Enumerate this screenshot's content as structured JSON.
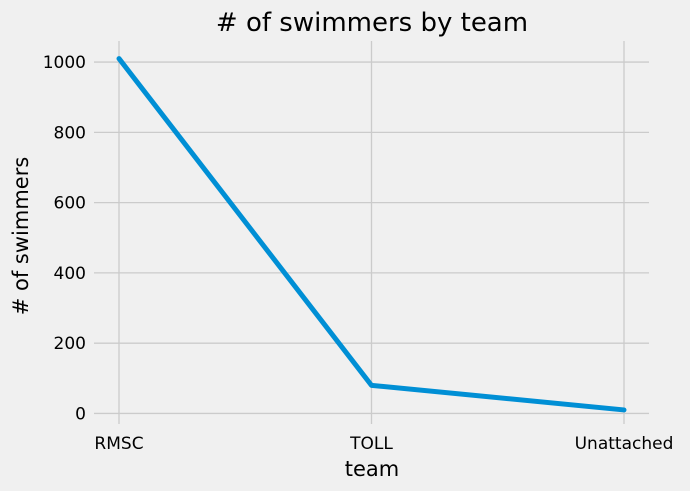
{
  "chart_data": {
    "type": "line",
    "title": "# of swimmers by team",
    "xlabel": "team",
    "ylabel": "# of swimmers",
    "categories": [
      "RMSC",
      "TOLL",
      "Unattached"
    ],
    "series": [
      {
        "values": [
          1010,
          80,
          10
        ],
        "color": "#008fd5"
      }
    ],
    "yticks": [
      0,
      200,
      400,
      600,
      800,
      1000
    ],
    "ylim": [
      -30,
      1060
    ],
    "grid": true,
    "legend": "none"
  }
}
